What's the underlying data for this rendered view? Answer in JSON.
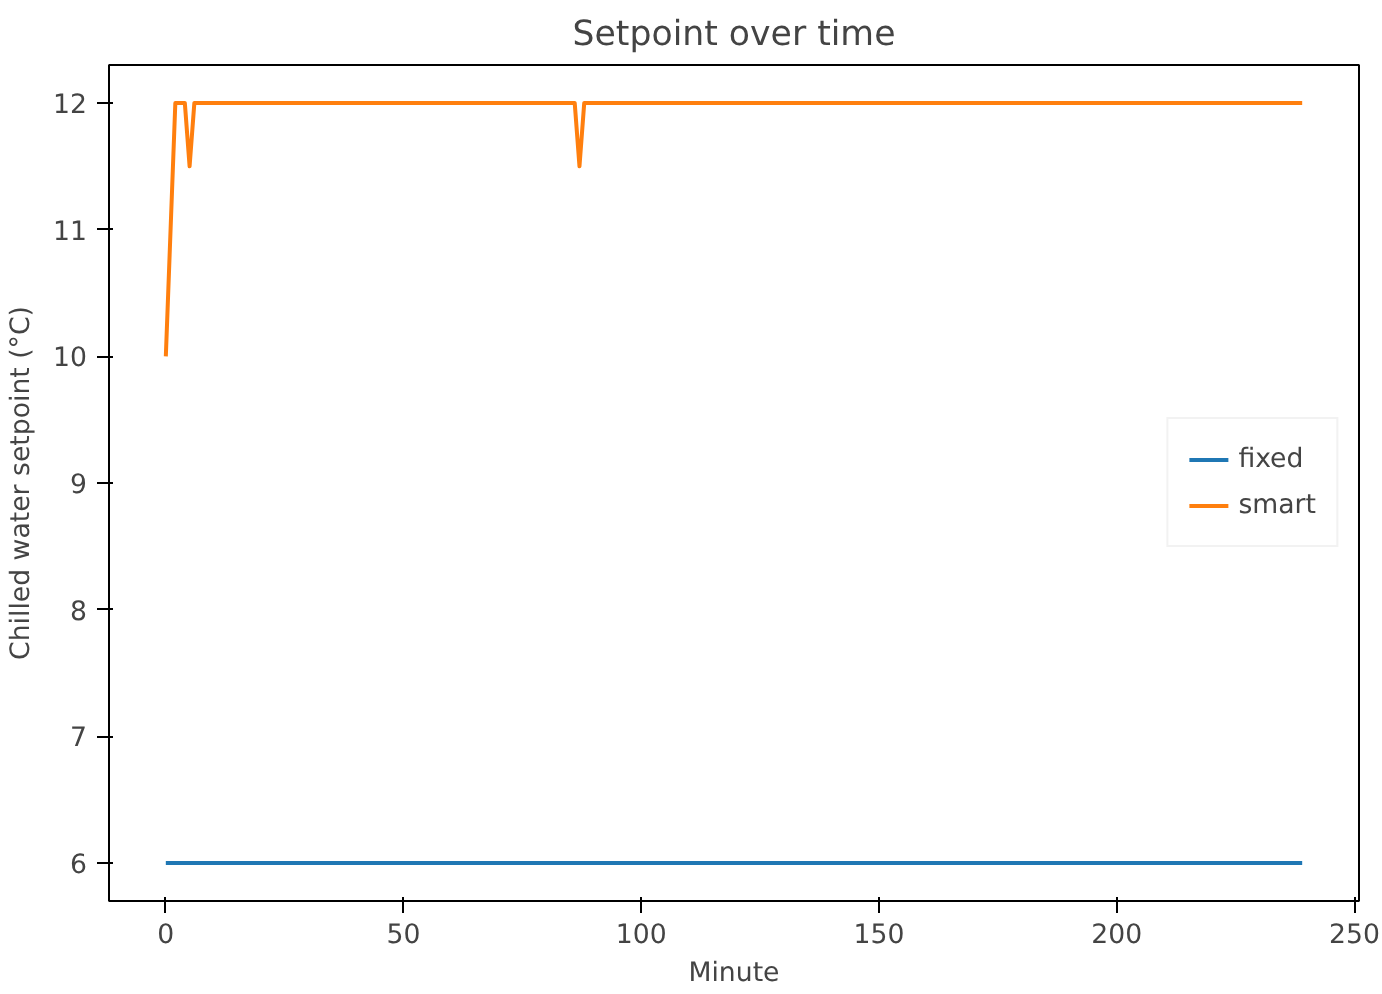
{
  "chart_data": {
    "type": "line",
    "title": "Setpoint over time",
    "xlabel": "Minute",
    "ylabel": "Chilled water setpoint (°C)",
    "xlim": [
      -11.95,
      250.95
    ],
    "xticks": [
      0,
      50,
      100,
      150,
      200,
      250
    ],
    "ylim": [
      5.7,
      12.3
    ],
    "yticks": [
      6,
      7,
      8,
      9,
      10,
      11,
      12
    ],
    "legend": "right",
    "grid": false,
    "series": [
      {
        "name": "fixed",
        "color": "#1f77b4",
        "x": [
          0,
          239
        ],
        "values": [
          6,
          6
        ]
      },
      {
        "name": "smart",
        "color": "#ff7f0e",
        "x": [
          0,
          2,
          4,
          5,
          6,
          86,
          87,
          88,
          239
        ],
        "values": [
          10,
          12,
          12,
          11.5,
          12,
          12,
          11.5,
          12,
          12
        ]
      }
    ]
  }
}
